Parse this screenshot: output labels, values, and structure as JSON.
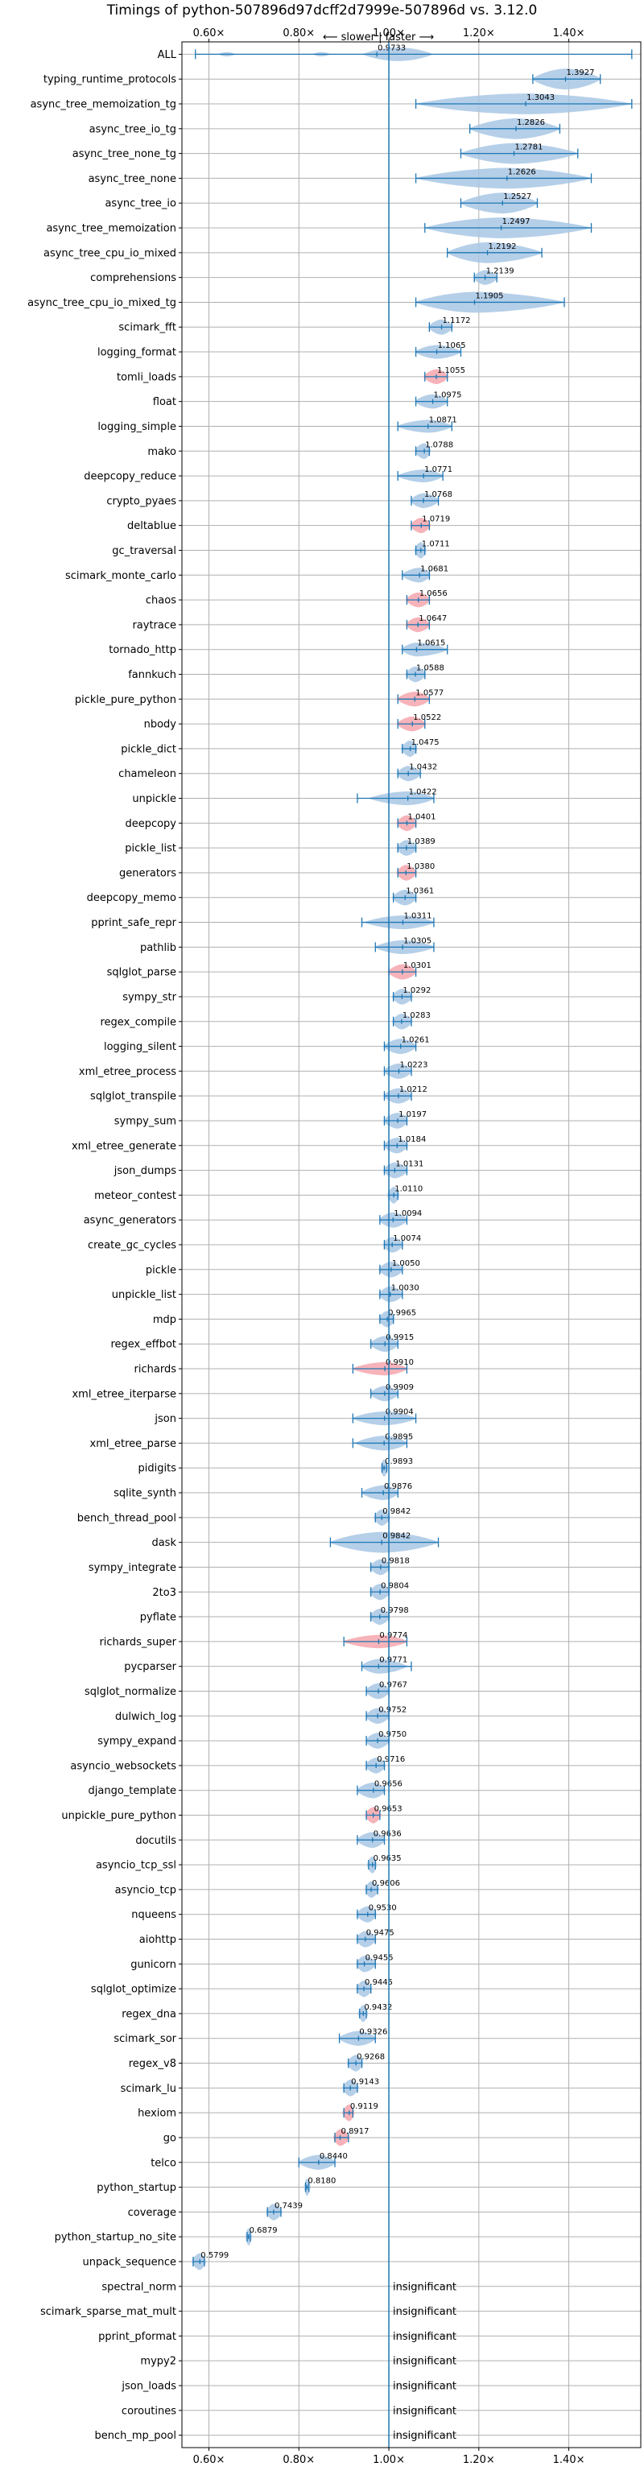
{
  "chart_data": {
    "type": "violin",
    "title": "Timings of python-507896d97dcff2d7999e-507896d vs. 3.12.0",
    "direction_label": "⟵ slower | faster ⟶",
    "xlim": [
      0.54,
      1.56
    ],
    "x_ticks": [
      0.6,
      0.8,
      1.0,
      1.2,
      1.4
    ],
    "x_tick_labels": [
      "0.60×",
      "0.80×",
      "1.00×",
      "1.20×",
      "1.40×"
    ],
    "reference_x": 1.0,
    "colors": {
      "violin": "#a8c7e4",
      "highlight": "#f4a6ad",
      "line": "#1f77b4",
      "grid": "#b0b0b0"
    },
    "benchmarks": [
      {
        "name": "ALL",
        "mean": 0.9733,
        "min": 0.57,
        "max": 1.54,
        "spread": 0.03,
        "highlight": false,
        "multimodal": true,
        "show_label": true
      },
      {
        "name": "typing_runtime_protocols",
        "mean": 1.3927,
        "min": 1.32,
        "max": 1.47,
        "spread": 0.07,
        "highlight": false
      },
      {
        "name": "async_tree_memoization_tg",
        "mean": 1.3043,
        "min": 1.06,
        "max": 1.54,
        "spread": 0.22,
        "highlight": false
      },
      {
        "name": "async_tree_io_tg",
        "mean": 1.2826,
        "min": 1.18,
        "max": 1.38,
        "spread": 0.09,
        "highlight": false
      },
      {
        "name": "async_tree_none_tg",
        "mean": 1.2781,
        "min": 1.16,
        "max": 1.42,
        "spread": 0.12,
        "highlight": false
      },
      {
        "name": "async_tree_none",
        "mean": 1.2626,
        "min": 1.06,
        "max": 1.45,
        "spread": 0.18,
        "highlight": false
      },
      {
        "name": "async_tree_io",
        "mean": 1.2527,
        "min": 1.16,
        "max": 1.33,
        "spread": 0.08,
        "highlight": false
      },
      {
        "name": "async_tree_memoization",
        "mean": 1.2497,
        "min": 1.08,
        "max": 1.45,
        "spread": 0.16,
        "highlight": false
      },
      {
        "name": "async_tree_cpu_io_mixed",
        "mean": 1.2192,
        "min": 1.13,
        "max": 1.34,
        "spread": 0.09,
        "highlight": false
      },
      {
        "name": "comprehensions",
        "mean": 1.2139,
        "min": 1.19,
        "max": 1.24,
        "spread": 0.03,
        "highlight": false
      },
      {
        "name": "async_tree_cpu_io_mixed_tg",
        "mean": 1.1905,
        "min": 1.06,
        "max": 1.39,
        "spread": 0.14,
        "highlight": false
      },
      {
        "name": "scimark_fft",
        "mean": 1.1172,
        "min": 1.09,
        "max": 1.14,
        "spread": 0.025,
        "highlight": false
      },
      {
        "name": "logging_format",
        "mean": 1.1065,
        "min": 1.06,
        "max": 1.16,
        "spread": 0.04,
        "highlight": false
      },
      {
        "name": "tomli_loads",
        "mean": 1.1055,
        "min": 1.08,
        "max": 1.13,
        "spread": 0.03,
        "highlight": true
      },
      {
        "name": "float",
        "mean": 1.0975,
        "min": 1.06,
        "max": 1.13,
        "spread": 0.035,
        "highlight": false
      },
      {
        "name": "logging_simple",
        "mean": 1.0871,
        "min": 1.02,
        "max": 1.14,
        "spread": 0.05,
        "highlight": false
      },
      {
        "name": "mako",
        "mean": 1.0788,
        "min": 1.06,
        "max": 1.09,
        "spread": 0.02,
        "highlight": false
      },
      {
        "name": "deepcopy_reduce",
        "mean": 1.0771,
        "min": 1.02,
        "max": 1.12,
        "spread": 0.05,
        "highlight": false
      },
      {
        "name": "crypto_pyaes",
        "mean": 1.0768,
        "min": 1.05,
        "max": 1.11,
        "spread": 0.03,
        "highlight": false
      },
      {
        "name": "deltablue",
        "mean": 1.0719,
        "min": 1.05,
        "max": 1.09,
        "spread": 0.025,
        "highlight": true
      },
      {
        "name": "gc_traversal",
        "mean": 1.0711,
        "min": 1.06,
        "max": 1.08,
        "spread": 0.015,
        "highlight": false
      },
      {
        "name": "scimark_monte_carlo",
        "mean": 1.0681,
        "min": 1.03,
        "max": 1.09,
        "spread": 0.03,
        "highlight": false
      },
      {
        "name": "chaos",
        "mean": 1.0656,
        "min": 1.04,
        "max": 1.09,
        "spread": 0.03,
        "highlight": true
      },
      {
        "name": "raytrace",
        "mean": 1.0647,
        "min": 1.04,
        "max": 1.09,
        "spread": 0.03,
        "highlight": true
      },
      {
        "name": "tornado_http",
        "mean": 1.0615,
        "min": 1.03,
        "max": 1.13,
        "spread": 0.04,
        "highlight": false
      },
      {
        "name": "fannkuch",
        "mean": 1.0588,
        "min": 1.04,
        "max": 1.08,
        "spread": 0.02,
        "highlight": false
      },
      {
        "name": "pickle_pure_python",
        "mean": 1.0577,
        "min": 1.02,
        "max": 1.09,
        "spread": 0.03,
        "highlight": true
      },
      {
        "name": "nbody",
        "mean": 1.0522,
        "min": 1.02,
        "max": 1.08,
        "spread": 0.03,
        "highlight": true
      },
      {
        "name": "pickle_dict",
        "mean": 1.0475,
        "min": 1.03,
        "max": 1.06,
        "spread": 0.015,
        "highlight": false
      },
      {
        "name": "chameleon",
        "mean": 1.0432,
        "min": 1.02,
        "max": 1.07,
        "spread": 0.025,
        "highlight": false
      },
      {
        "name": "unpickle",
        "mean": 1.0422,
        "min": 0.93,
        "max": 1.1,
        "spread": 0.04,
        "highlight": false
      },
      {
        "name": "deepcopy",
        "mean": 1.0401,
        "min": 1.02,
        "max": 1.06,
        "spread": 0.02,
        "highlight": true
      },
      {
        "name": "pickle_list",
        "mean": 1.0389,
        "min": 1.02,
        "max": 1.06,
        "spread": 0.02,
        "highlight": false
      },
      {
        "name": "generators",
        "mean": 1.038,
        "min": 1.02,
        "max": 1.06,
        "spread": 0.02,
        "highlight": true
      },
      {
        "name": "deepcopy_memo",
        "mean": 1.0361,
        "min": 1.01,
        "max": 1.06,
        "spread": 0.02,
        "highlight": false
      },
      {
        "name": "pprint_safe_repr",
        "mean": 1.0311,
        "min": 0.94,
        "max": 1.1,
        "spread": 0.04,
        "highlight": false
      },
      {
        "name": "pathlib",
        "mean": 1.0305,
        "min": 0.97,
        "max": 1.1,
        "spread": 0.04,
        "highlight": false
      },
      {
        "name": "sqlglot_parse",
        "mean": 1.0301,
        "min": 1.0,
        "max": 1.06,
        "spread": 0.025,
        "highlight": true
      },
      {
        "name": "sympy_str",
        "mean": 1.0292,
        "min": 1.01,
        "max": 1.05,
        "spread": 0.02,
        "highlight": false
      },
      {
        "name": "regex_compile",
        "mean": 1.0283,
        "min": 1.01,
        "max": 1.05,
        "spread": 0.02,
        "highlight": false
      },
      {
        "name": "logging_silent",
        "mean": 1.0261,
        "min": 0.99,
        "max": 1.06,
        "spread": 0.025,
        "highlight": false
      },
      {
        "name": "xml_etree_process",
        "mean": 1.0223,
        "min": 0.99,
        "max": 1.05,
        "spread": 0.025,
        "highlight": false
      },
      {
        "name": "sqlglot_transpile",
        "mean": 1.0212,
        "min": 0.99,
        "max": 1.05,
        "spread": 0.025,
        "highlight": false
      },
      {
        "name": "sympy_sum",
        "mean": 1.0197,
        "min": 0.99,
        "max": 1.04,
        "spread": 0.02,
        "highlight": false
      },
      {
        "name": "xml_etree_generate",
        "mean": 1.0184,
        "min": 0.99,
        "max": 1.04,
        "spread": 0.02,
        "highlight": false
      },
      {
        "name": "json_dumps",
        "mean": 1.0131,
        "min": 0.99,
        "max": 1.04,
        "spread": 0.02,
        "highlight": false
      },
      {
        "name": "meteor_contest",
        "mean": 1.011,
        "min": 1.0,
        "max": 1.02,
        "spread": 0.01,
        "highlight": false
      },
      {
        "name": "async_generators",
        "mean": 1.0094,
        "min": 0.98,
        "max": 1.04,
        "spread": 0.025,
        "highlight": false
      },
      {
        "name": "create_gc_cycles",
        "mean": 1.0074,
        "min": 0.99,
        "max": 1.03,
        "spread": 0.02,
        "highlight": false
      },
      {
        "name": "pickle",
        "mean": 1.005,
        "min": 0.98,
        "max": 1.03,
        "spread": 0.02,
        "highlight": false
      },
      {
        "name": "unpickle_list",
        "mean": 1.003,
        "min": 0.98,
        "max": 1.03,
        "spread": 0.02,
        "highlight": false
      },
      {
        "name": "mdp",
        "mean": 0.9965,
        "min": 0.98,
        "max": 1.01,
        "spread": 0.015,
        "highlight": false
      },
      {
        "name": "regex_effbot",
        "mean": 0.9915,
        "min": 0.96,
        "max": 1.02,
        "spread": 0.02,
        "highlight": false
      },
      {
        "name": "richards",
        "mean": 0.991,
        "min": 0.92,
        "max": 1.04,
        "spread": 0.045,
        "highlight": true
      },
      {
        "name": "xml_etree_iterparse",
        "mean": 0.9909,
        "min": 0.96,
        "max": 1.02,
        "spread": 0.025,
        "highlight": false
      },
      {
        "name": "json",
        "mean": 0.9904,
        "min": 0.92,
        "max": 1.06,
        "spread": 0.04,
        "highlight": false
      },
      {
        "name": "xml_etree_parse",
        "mean": 0.9895,
        "min": 0.92,
        "max": 1.04,
        "spread": 0.03,
        "highlight": false
      },
      {
        "name": "pidigits",
        "mean": 0.9893,
        "min": 0.985,
        "max": 0.995,
        "spread": 0.006,
        "highlight": false
      },
      {
        "name": "sqlite_synth",
        "mean": 0.9876,
        "min": 0.94,
        "max": 1.02,
        "spread": 0.03,
        "highlight": false
      },
      {
        "name": "bench_thread_pool",
        "mean": 0.9842,
        "min": 0.97,
        "max": 1.0,
        "spread": 0.015,
        "highlight": false
      },
      {
        "name": "dask",
        "mean": 0.9842,
        "min": 0.87,
        "max": 1.11,
        "spread": 0.08,
        "highlight": false
      },
      {
        "name": "sympy_integrate",
        "mean": 0.9818,
        "min": 0.96,
        "max": 1.0,
        "spread": 0.02,
        "highlight": false
      },
      {
        "name": "2to3",
        "mean": 0.9804,
        "min": 0.96,
        "max": 1.0,
        "spread": 0.015,
        "highlight": false
      },
      {
        "name": "pyflate",
        "mean": 0.9798,
        "min": 0.96,
        "max": 1.0,
        "spread": 0.015,
        "highlight": false
      },
      {
        "name": "richards_super",
        "mean": 0.9774,
        "min": 0.9,
        "max": 1.04,
        "spread": 0.045,
        "highlight": true
      },
      {
        "name": "pycparser",
        "mean": 0.9771,
        "min": 0.94,
        "max": 1.05,
        "spread": 0.03,
        "highlight": false
      },
      {
        "name": "sqlglot_normalize",
        "mean": 0.9767,
        "min": 0.95,
        "max": 1.0,
        "spread": 0.02,
        "highlight": false
      },
      {
        "name": "dulwich_log",
        "mean": 0.9752,
        "min": 0.95,
        "max": 1.0,
        "spread": 0.02,
        "highlight": false
      },
      {
        "name": "sympy_expand",
        "mean": 0.975,
        "min": 0.95,
        "max": 1.0,
        "spread": 0.02,
        "highlight": false
      },
      {
        "name": "asyncio_websockets",
        "mean": 0.9716,
        "min": 0.95,
        "max": 0.99,
        "spread": 0.02,
        "highlight": false
      },
      {
        "name": "django_template",
        "mean": 0.9656,
        "min": 0.93,
        "max": 0.99,
        "spread": 0.02,
        "highlight": false
      },
      {
        "name": "unpickle_pure_python",
        "mean": 0.9653,
        "min": 0.95,
        "max": 0.98,
        "spread": 0.015,
        "highlight": true
      },
      {
        "name": "docutils",
        "mean": 0.9636,
        "min": 0.93,
        "max": 0.99,
        "spread": 0.02,
        "highlight": false
      },
      {
        "name": "asyncio_tcp_ssl",
        "mean": 0.9635,
        "min": 0.955,
        "max": 0.97,
        "spread": 0.008,
        "highlight": false
      },
      {
        "name": "asyncio_tcp",
        "mean": 0.9606,
        "min": 0.95,
        "max": 0.975,
        "spread": 0.012,
        "highlight": false
      },
      {
        "name": "nqueens",
        "mean": 0.953,
        "min": 0.93,
        "max": 0.97,
        "spread": 0.015,
        "highlight": false
      },
      {
        "name": "aiohttp",
        "mean": 0.9475,
        "min": 0.93,
        "max": 0.97,
        "spread": 0.015,
        "highlight": false
      },
      {
        "name": "gunicorn",
        "mean": 0.9455,
        "min": 0.93,
        "max": 0.97,
        "spread": 0.015,
        "highlight": false
      },
      {
        "name": "sqlglot_optimize",
        "mean": 0.9445,
        "min": 0.93,
        "max": 0.96,
        "spread": 0.012,
        "highlight": false
      },
      {
        "name": "regex_dna",
        "mean": 0.9432,
        "min": 0.935,
        "max": 0.95,
        "spread": 0.008,
        "highlight": false
      },
      {
        "name": "scimark_sor",
        "mean": 0.9326,
        "min": 0.89,
        "max": 0.97,
        "spread": 0.03,
        "highlight": false
      },
      {
        "name": "regex_v8",
        "mean": 0.9268,
        "min": 0.91,
        "max": 0.94,
        "spread": 0.012,
        "highlight": false
      },
      {
        "name": "scimark_lu",
        "mean": 0.9143,
        "min": 0.9,
        "max": 0.93,
        "spread": 0.012,
        "highlight": false
      },
      {
        "name": "hexiom",
        "mean": 0.9119,
        "min": 0.9,
        "max": 0.92,
        "spread": 0.01,
        "highlight": true
      },
      {
        "name": "go",
        "mean": 0.8917,
        "min": 0.88,
        "max": 0.91,
        "spread": 0.012,
        "highlight": true
      },
      {
        "name": "telco",
        "mean": 0.844,
        "min": 0.8,
        "max": 0.88,
        "spread": 0.03,
        "highlight": false
      },
      {
        "name": "python_startup",
        "mean": 0.818,
        "min": 0.815,
        "max": 0.822,
        "spread": 0.004,
        "highlight": false
      },
      {
        "name": "coverage",
        "mean": 0.7439,
        "min": 0.73,
        "max": 0.76,
        "spread": 0.012,
        "highlight": false
      },
      {
        "name": "python_startup_no_site",
        "mean": 0.6879,
        "min": 0.685,
        "max": 0.692,
        "spread": 0.004,
        "highlight": false
      },
      {
        "name": "unpack_sequence",
        "mean": 0.5799,
        "min": 0.565,
        "max": 0.59,
        "spread": 0.01,
        "highlight": false
      },
      {
        "name": "spectral_norm",
        "insignificant": true
      },
      {
        "name": "scimark_sparse_mat_mult",
        "insignificant": true
      },
      {
        "name": "pprint_pformat",
        "insignificant": true
      },
      {
        "name": "mypy2",
        "insignificant": true
      },
      {
        "name": "json_loads",
        "insignificant": true
      },
      {
        "name": "coroutines",
        "insignificant": true
      },
      {
        "name": "bench_mp_pool",
        "insignificant": true
      }
    ],
    "insignificant_text": "insignificant",
    "grid": true
  }
}
